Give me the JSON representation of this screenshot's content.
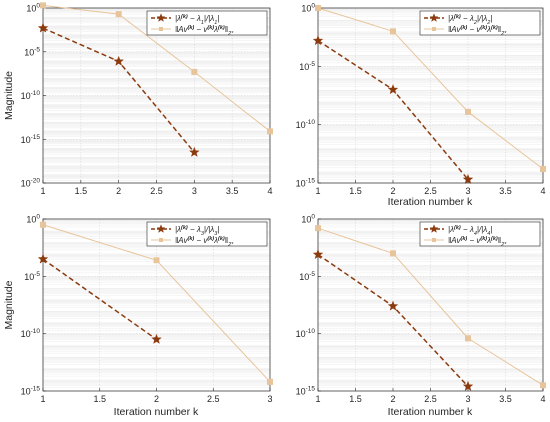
{
  "chart_data": [
    {
      "type": "line",
      "yscale": "log",
      "grid": true,
      "legend": "top-right",
      "xlabel": "",
      "ylabel": "Magnitude",
      "xlim": [
        1,
        4
      ],
      "ylim_exp": [
        -20,
        0
      ],
      "x_ticks": [
        "1",
        "1.5",
        "2",
        "2.5",
        "3",
        "3.5",
        "4"
      ],
      "y_ticks": [
        {
          "base": "10",
          "exp": "-20",
          "value": -20
        },
        {
          "base": "10",
          "exp": "-15",
          "value": -15
        },
        {
          "base": "10",
          "exp": "-10",
          "value": -10
        },
        {
          "base": "10",
          "exp": "-5",
          "value": -5
        },
        {
          "base": "10",
          "exp": "0",
          "value": 0
        }
      ],
      "series": [
        {
          "name": "|λ(k) − λ1|/|λ1|",
          "color": "#8b3a0e",
          "style": "dashed",
          "marker": "star",
          "x": [
            1,
            2,
            3
          ],
          "log10_y": [
            -2.3,
            -6.1,
            -16.5
          ]
        },
        {
          "name": "‖Av(k) − v(k)λ(k)‖2*",
          "color": "#e8c49a",
          "style": "solid",
          "marker": "square",
          "x": [
            1,
            2,
            3,
            4
          ],
          "log10_y": [
            0.3,
            -0.7,
            -7.3,
            -14.1
          ]
        }
      ],
      "legend_entries": [
        {
          "parts": [
            {
              "t": "|λ"
            },
            {
              "t": "(k)",
              "sup": true
            },
            {
              "t": " − λ"
            },
            {
              "t": "1",
              "sub": true
            },
            {
              "t": "|/|λ"
            },
            {
              "t": "1",
              "sub": true
            },
            {
              "t": "|"
            }
          ]
        },
        {
          "parts": [
            {
              "t": "‖Av"
            },
            {
              "t": "(k)",
              "sup": true
            },
            {
              "t": " − v"
            },
            {
              "t": "(k)",
              "sup": true
            },
            {
              "t": "λ"
            },
            {
              "t": "(k)",
              "sup": true
            },
            {
              "t": "‖"
            },
            {
              "t": "2*",
              "sub": true
            }
          ]
        }
      ]
    },
    {
      "type": "line",
      "yscale": "log",
      "grid": true,
      "legend": "top-right",
      "xlabel": "Iteration number k",
      "ylabel": "",
      "xlim": [
        1,
        4
      ],
      "ylim_exp": [
        -15,
        0
      ],
      "x_ticks": [
        "1",
        "1.5",
        "2",
        "2.5",
        "3",
        "3.5",
        "4"
      ],
      "y_ticks": [
        {
          "base": "10",
          "exp": "-15",
          "value": -15
        },
        {
          "base": "10",
          "exp": "-10",
          "value": -10
        },
        {
          "base": "10",
          "exp": "-5",
          "value": -5
        },
        {
          "base": "10",
          "exp": "0",
          "value": 0
        }
      ],
      "series": [
        {
          "name": "|λ(k) − λ2|/|λ2|",
          "color": "#8b3a0e",
          "style": "dashed",
          "marker": "star",
          "x": [
            1,
            2,
            3
          ],
          "log10_y": [
            -2.8,
            -7.0,
            -14.7
          ]
        },
        {
          "name": "‖Av(k) − v(k)λ(k)‖2*",
          "color": "#e8c49a",
          "style": "solid",
          "marker": "square",
          "x": [
            1,
            2,
            3,
            4
          ],
          "log10_y": [
            0.0,
            -2.0,
            -8.9,
            -13.8
          ]
        }
      ],
      "legend_entries": [
        {
          "parts": [
            {
              "t": "|λ"
            },
            {
              "t": "(k)",
              "sup": true
            },
            {
              "t": " − λ"
            },
            {
              "t": "2",
              "sub": true
            },
            {
              "t": "|/|λ"
            },
            {
              "t": "2",
              "sub": true
            },
            {
              "t": "|"
            }
          ]
        },
        {
          "parts": [
            {
              "t": "‖Av"
            },
            {
              "t": "(k)",
              "sup": true
            },
            {
              "t": " − v"
            },
            {
              "t": "(k)",
              "sup": true
            },
            {
              "t": "λ"
            },
            {
              "t": "(k)",
              "sup": true
            },
            {
              "t": "‖"
            },
            {
              "t": "2*",
              "sub": true
            }
          ]
        }
      ]
    },
    {
      "type": "line",
      "yscale": "log",
      "grid": true,
      "legend": "top-right",
      "xlabel": "Iteration number k",
      "ylabel": "Magnitude",
      "xlim": [
        1,
        3
      ],
      "ylim_exp": [
        -15,
        0
      ],
      "x_ticks": [
        "1",
        "1.5",
        "2",
        "2.5",
        "3"
      ],
      "y_ticks": [
        {
          "base": "10",
          "exp": "-15",
          "value": -15
        },
        {
          "base": "10",
          "exp": "-10",
          "value": -10
        },
        {
          "base": "10",
          "exp": "-5",
          "value": -5
        },
        {
          "base": "10",
          "exp": "0",
          "value": 0
        }
      ],
      "series": [
        {
          "name": "|λ(k) − λ3|/|λ3|",
          "color": "#8b3a0e",
          "style": "dashed",
          "marker": "star",
          "x": [
            1,
            2
          ],
          "log10_y": [
            -3.5,
            -10.5
          ]
        },
        {
          "name": "‖Av(k) − v(k)λ(k)‖2*",
          "color": "#e8c49a",
          "style": "solid",
          "marker": "square",
          "x": [
            1,
            2,
            3
          ],
          "log10_y": [
            -0.5,
            -3.6,
            -14.2
          ]
        }
      ],
      "legend_entries": [
        {
          "parts": [
            {
              "t": "|λ"
            },
            {
              "t": "(k)",
              "sup": true
            },
            {
              "t": " − λ"
            },
            {
              "t": "3",
              "sub": true
            },
            {
              "t": "|/|λ"
            },
            {
              "t": "3",
              "sub": true
            },
            {
              "t": "|"
            }
          ]
        },
        {
          "parts": [
            {
              "t": "‖Av"
            },
            {
              "t": "(k)",
              "sup": true
            },
            {
              "t": " − v"
            },
            {
              "t": "(k)",
              "sup": true
            },
            {
              "t": "λ"
            },
            {
              "t": "(k)",
              "sup": true
            },
            {
              "t": "‖"
            },
            {
              "t": "2*",
              "sub": true
            }
          ]
        }
      ]
    },
    {
      "type": "line",
      "yscale": "log",
      "grid": true,
      "legend": "top-right",
      "xlabel": "Iteration number k",
      "ylabel": "",
      "xlim": [
        1,
        4
      ],
      "ylim_exp": [
        -15,
        0
      ],
      "x_ticks": [
        "1",
        "1.5",
        "2",
        "2.5",
        "3",
        "3.5",
        "4"
      ],
      "y_ticks": [
        {
          "base": "10",
          "exp": "-15",
          "value": -15
        },
        {
          "base": "10",
          "exp": "-10",
          "value": -10
        },
        {
          "base": "10",
          "exp": "-5",
          "value": -5
        },
        {
          "base": "10",
          "exp": "0",
          "value": 0
        }
      ],
      "series": [
        {
          "name": "|λ(k) − λ4|/|λ4|",
          "color": "#8b3a0e",
          "style": "dashed",
          "marker": "star",
          "x": [
            1,
            2,
            3
          ],
          "log10_y": [
            -3.1,
            -7.6,
            -14.6
          ]
        },
        {
          "name": "‖Av(k) − v(k)λ(k)‖2*",
          "color": "#e8c49a",
          "style": "solid",
          "marker": "square",
          "x": [
            1,
            2,
            3,
            4
          ],
          "log10_y": [
            -0.8,
            -3.0,
            -10.4,
            -14.5
          ]
        }
      ],
      "legend_entries": [
        {
          "parts": [
            {
              "t": "|λ"
            },
            {
              "t": "(k)",
              "sup": true
            },
            {
              "t": " − λ"
            },
            {
              "t": "4",
              "sub": true
            },
            {
              "t": "|/|λ"
            },
            {
              "t": "4",
              "sub": true
            },
            {
              "t": "|"
            }
          ]
        },
        {
          "parts": [
            {
              "t": "‖Av"
            },
            {
              "t": "(k)",
              "sup": true
            },
            {
              "t": " − v"
            },
            {
              "t": "(k)",
              "sup": true
            },
            {
              "t": "λ"
            },
            {
              "t": "(k)",
              "sup": true
            },
            {
              "t": "‖"
            },
            {
              "t": "2*",
              "sub": true
            }
          ]
        }
      ]
    }
  ]
}
